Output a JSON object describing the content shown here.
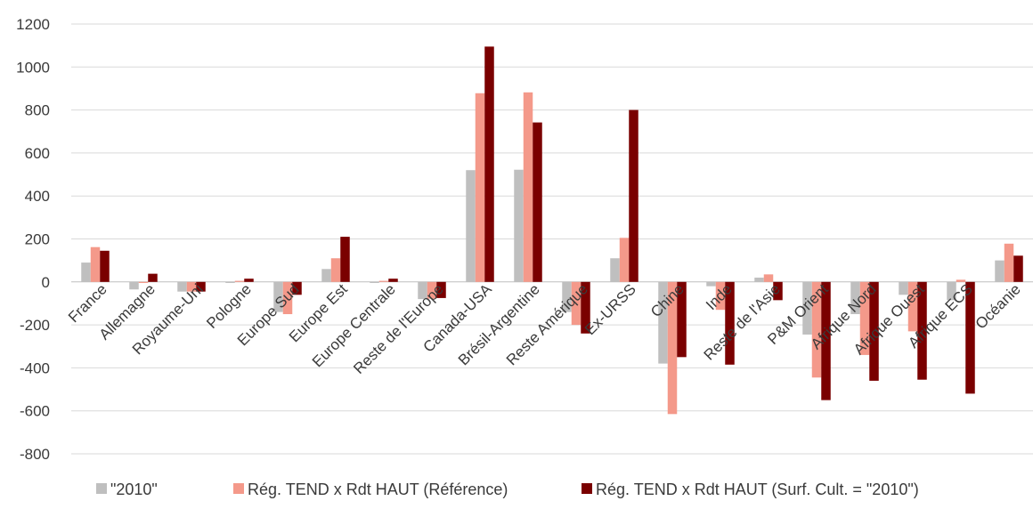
{
  "chart_data": {
    "type": "bar",
    "title": "",
    "xlabel": "",
    "ylabel": "",
    "ylim": [
      -800,
      1200
    ],
    "yticks": [
      -800,
      -600,
      -400,
      -200,
      0,
      200,
      400,
      600,
      800,
      1000,
      1200
    ],
    "grid": true,
    "legend": "bottom",
    "categories": [
      "France",
      "Allemagne",
      "Royaume-Uni",
      "Pologne",
      "Europe Sud",
      "Europe Est",
      "Europe Centrale",
      "Reste de l'Europe",
      "Canada-USA",
      "Brésil-Argentine",
      "Reste Amérique",
      "Ex-URSS",
      "Chine",
      "Inde",
      "Reste de l'Asie",
      "P&M Orient",
      "Afrique Nord",
      "Afrique Ouest",
      "Afrique ECS",
      "Océanie"
    ],
    "series": [
      {
        "name": "\"2010\"",
        "color": "#bfbfbf",
        "values": [
          90,
          -35,
          -45,
          -5,
          -140,
          60,
          -5,
          -80,
          520,
          522,
          -140,
          110,
          -380,
          -20,
          20,
          -245,
          -150,
          -60,
          -85,
          100
        ]
      },
      {
        "name": "Rég. TEND x Rdt HAUT (Référence)",
        "color": "#f4998a",
        "values": [
          162,
          -5,
          -45,
          5,
          -150,
          110,
          5,
          -78,
          878,
          882,
          -200,
          205,
          -615,
          -130,
          35,
          -445,
          -340,
          -230,
          10,
          178
        ]
      },
      {
        "name": "Rég. TEND x Rdt HAUT (Surf. Cult. = \"2010\")",
        "color": "#7a0000",
        "values": [
          145,
          38,
          -45,
          15,
          -60,
          210,
          15,
          -75,
          1095,
          742,
          -240,
          800,
          -350,
          -385,
          -85,
          -550,
          -460,
          -455,
          -520,
          122
        ]
      }
    ]
  }
}
